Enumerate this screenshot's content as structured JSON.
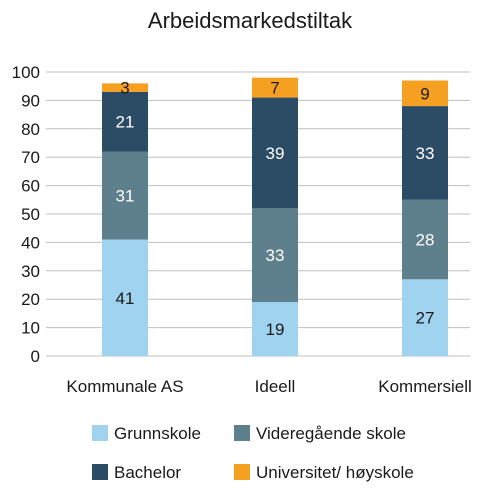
{
  "chart_data": {
    "type": "bar",
    "stacked": true,
    "title": "Arbeidsmarkedstiltak",
    "xlabel": "",
    "ylabel": "",
    "ylim": [
      0,
      100
    ],
    "yticks": [
      "0",
      "10",
      "20",
      "30",
      "40",
      "50",
      "60",
      "70",
      "80",
      "90",
      "100"
    ],
    "grid": true,
    "legend_position": "bottom",
    "categories": [
      "Kommunale AS",
      "Ideell",
      "Kommersiell"
    ],
    "series": [
      {
        "name": "Grunnskole",
        "values": [
          41,
          19,
          27
        ],
        "color": "#9fd3f0",
        "label_color": "#1a1a1a"
      },
      {
        "name": "Videregående skole",
        "values": [
          31,
          33,
          28
        ],
        "color": "#5e7f8c",
        "label_color": "#ffffff"
      },
      {
        "name": "Bachelor",
        "values": [
          21,
          39,
          33
        ],
        "color": "#2c4c66",
        "label_color": "#ffffff"
      },
      {
        "name": "Universitet/ høyskole",
        "values": [
          3,
          7,
          9
        ],
        "color": "#f5a021",
        "label_color": "#1a1a1a"
      }
    ]
  }
}
